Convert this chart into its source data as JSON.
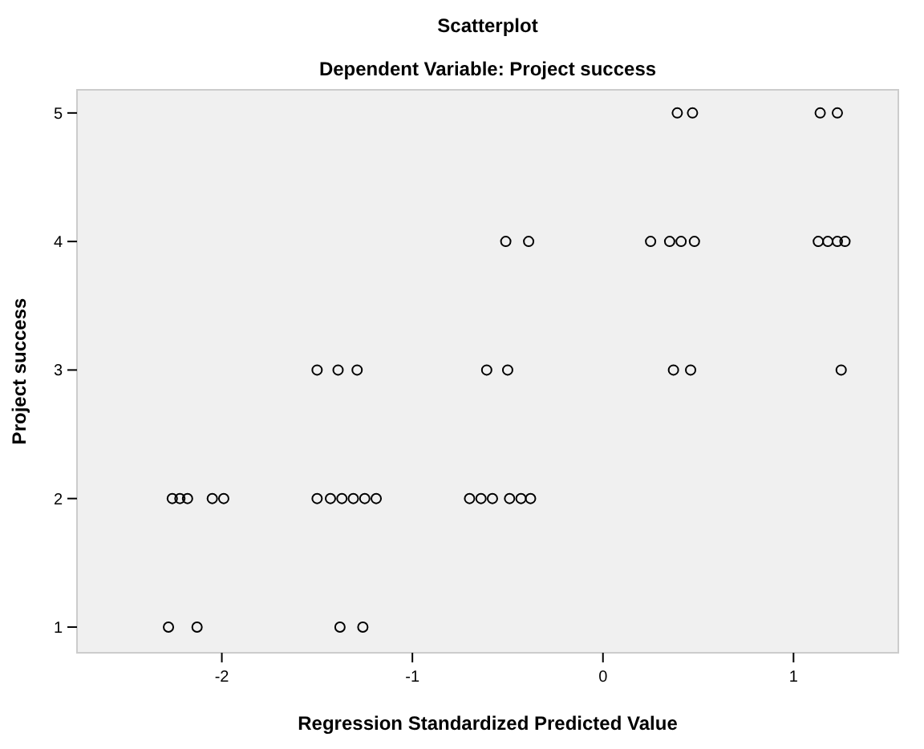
{
  "chart_data": {
    "type": "scatter",
    "title": "Scatterplot",
    "subtitle": "Dependent Variable: Project success",
    "xlabel": "Regression Standardized Predicted Value",
    "ylabel": "Project success",
    "x": [
      0.39,
      0.47,
      1.14,
      1.23,
      -0.51,
      -0.39,
      0.25,
      0.35,
      0.41,
      0.48,
      1.13,
      1.18,
      1.23,
      1.27,
      -1.5,
      -1.39,
      -1.29,
      -0.61,
      -0.5,
      0.37,
      0.46,
      1.25,
      -2.26,
      -2.22,
      -2.18,
      -2.05,
      -1.99,
      -1.5,
      -1.43,
      -1.37,
      -1.31,
      -1.25,
      -1.19,
      -0.7,
      -0.64,
      -0.58,
      -0.49,
      -0.43,
      -0.38,
      -2.28,
      -2.13,
      -1.38,
      -1.26
    ],
    "values": [
      5,
      5,
      5,
      5,
      4,
      4,
      4,
      4,
      4,
      4,
      4,
      4,
      4,
      4,
      3,
      3,
      3,
      3,
      3,
      3,
      3,
      3,
      2,
      2,
      2,
      2,
      2,
      2,
      2,
      2,
      2,
      2,
      2,
      2,
      2,
      2,
      2,
      2,
      2,
      1,
      1,
      1,
      1
    ],
    "color": "#000000",
    "marker": "circle",
    "grid": false,
    "xlim": [
      -2.76,
      1.55
    ],
    "xticks": [
      -2,
      -1,
      0,
      1
    ],
    "ylim": [
      0.8,
      5.18
    ],
    "yticks": [
      1,
      2,
      3,
      4,
      5
    ]
  }
}
